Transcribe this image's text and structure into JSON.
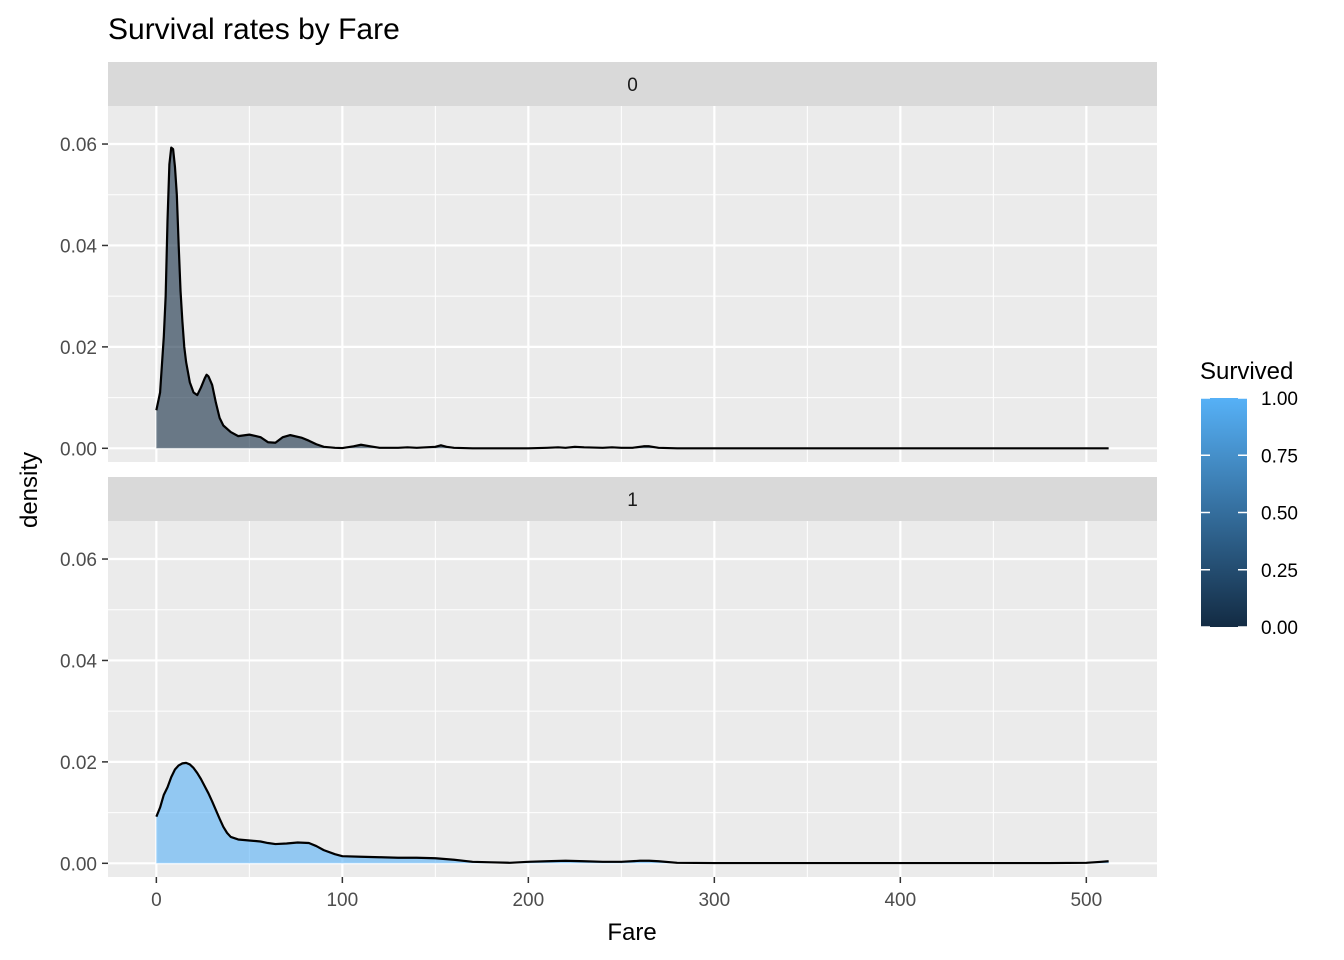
{
  "chart_data": {
    "type": "area",
    "title": "Survival rates by Fare",
    "xlabel": "Fare",
    "ylabel": "density",
    "xlim": [
      -26,
      538
    ],
    "ylim": [
      -0.0027,
      0.0675
    ],
    "x_ticks": [
      0,
      100,
      200,
      300,
      400,
      500
    ],
    "x_tick_labels": [
      "0",
      "100",
      "200",
      "300",
      "400",
      "500"
    ],
    "y_ticks": [
      0,
      0.02,
      0.04,
      0.06
    ],
    "y_tick_labels": [
      "0.00",
      "0.02",
      "0.04",
      "0.06"
    ],
    "grid": true,
    "legend": {
      "title": "Survived",
      "position": "right",
      "type": "colorbar",
      "low_color": "#132b43",
      "high_color": "#56b1f7",
      "limits": [
        0,
        1
      ],
      "ticks": [
        0,
        0.25,
        0.5,
        0.75,
        1
      ],
      "tick_labels": [
        "0.00",
        "0.25",
        "0.50",
        "0.75",
        "1.00"
      ]
    },
    "facets": [
      {
        "label": "0",
        "fill_value": 0,
        "fill_color": "#132b43",
        "points": [
          [
            0,
            0.0075
          ],
          [
            2,
            0.011
          ],
          [
            4,
            0.022
          ],
          [
            5,
            0.03
          ],
          [
            6,
            0.045
          ],
          [
            7,
            0.056
          ],
          [
            8,
            0.0593
          ],
          [
            9,
            0.059
          ],
          [
            10,
            0.0555
          ],
          [
            11,
            0.05
          ],
          [
            12,
            0.04
          ],
          [
            13,
            0.031
          ],
          [
            14,
            0.025
          ],
          [
            15,
            0.02
          ],
          [
            16,
            0.017
          ],
          [
            18,
            0.013
          ],
          [
            20,
            0.011
          ],
          [
            22,
            0.0105
          ],
          [
            24,
            0.012
          ],
          [
            26,
            0.0138
          ],
          [
            27,
            0.0145
          ],
          [
            28,
            0.0142
          ],
          [
            30,
            0.0125
          ],
          [
            32,
            0.009
          ],
          [
            34,
            0.006
          ],
          [
            36,
            0.0045
          ],
          [
            40,
            0.0032
          ],
          [
            44,
            0.0024
          ],
          [
            50,
            0.0027
          ],
          [
            56,
            0.0022
          ],
          [
            60,
            0.0012
          ],
          [
            64,
            0.0011
          ],
          [
            68,
            0.0022
          ],
          [
            72,
            0.0026
          ],
          [
            78,
            0.0021
          ],
          [
            82,
            0.0015
          ],
          [
            86,
            0.0008
          ],
          [
            90,
            0.0003
          ],
          [
            96,
            0.0001
          ],
          [
            100,
            5e-05
          ],
          [
            106,
            0.0004
          ],
          [
            110,
            0.0007
          ],
          [
            115,
            0.0004
          ],
          [
            120,
            0.0001
          ],
          [
            130,
            0.0001
          ],
          [
            135,
            0.0002
          ],
          [
            140,
            0.0001
          ],
          [
            150,
            0.0003
          ],
          [
            153,
            0.0006
          ],
          [
            156,
            0.0003
          ],
          [
            160,
            0.0001
          ],
          [
            170,
            0
          ],
          [
            200,
            0
          ],
          [
            210,
            0.0001
          ],
          [
            216,
            0.0002
          ],
          [
            220,
            0.0001
          ],
          [
            225,
            0.0003
          ],
          [
            230,
            0.0002
          ],
          [
            240,
            0.0001
          ],
          [
            245,
            0.0002
          ],
          [
            250,
            0.0001
          ],
          [
            256,
            0.0001
          ],
          [
            262,
            0.0004
          ],
          [
            265,
            0.0004
          ],
          [
            270,
            0.0001
          ],
          [
            280,
            0
          ],
          [
            300,
            0
          ],
          [
            400,
            0
          ],
          [
            500,
            0
          ],
          [
            512,
            0
          ]
        ]
      },
      {
        "label": "1",
        "fill_value": 1,
        "fill_color": "#56b1f7",
        "points": [
          [
            0,
            0.0092
          ],
          [
            2,
            0.011
          ],
          [
            4,
            0.0135
          ],
          [
            6,
            0.015
          ],
          [
            8,
            0.017
          ],
          [
            10,
            0.0185
          ],
          [
            12,
            0.0193
          ],
          [
            14,
            0.0197
          ],
          [
            16,
            0.0198
          ],
          [
            18,
            0.0195
          ],
          [
            20,
            0.0188
          ],
          [
            22,
            0.0178
          ],
          [
            24,
            0.0166
          ],
          [
            26,
            0.0152
          ],
          [
            28,
            0.0138
          ],
          [
            30,
            0.0122
          ],
          [
            32,
            0.0105
          ],
          [
            34,
            0.0088
          ],
          [
            36,
            0.0072
          ],
          [
            38,
            0.006
          ],
          [
            40,
            0.0052
          ],
          [
            44,
            0.0047
          ],
          [
            50,
            0.0045
          ],
          [
            56,
            0.0043
          ],
          [
            60,
            0.004
          ],
          [
            64,
            0.0038
          ],
          [
            70,
            0.0039
          ],
          [
            76,
            0.0041
          ],
          [
            82,
            0.004
          ],
          [
            86,
            0.0034
          ],
          [
            90,
            0.0026
          ],
          [
            96,
            0.0018
          ],
          [
            100,
            0.0014
          ],
          [
            110,
            0.0013
          ],
          [
            120,
            0.0012
          ],
          [
            130,
            0.0011
          ],
          [
            140,
            0.0011
          ],
          [
            150,
            0.001
          ],
          [
            160,
            0.0007
          ],
          [
            170,
            0.0003
          ],
          [
            180,
            0.0002
          ],
          [
            190,
            0.0001
          ],
          [
            200,
            0.0003
          ],
          [
            210,
            0.0004
          ],
          [
            220,
            0.0005
          ],
          [
            230,
            0.0004
          ],
          [
            240,
            0.0003
          ],
          [
            250,
            0.0003
          ],
          [
            260,
            0.0005
          ],
          [
            265,
            0.0005
          ],
          [
            270,
            0.0004
          ],
          [
            280,
            0.0001
          ],
          [
            300,
            5e-05
          ],
          [
            400,
            5e-05
          ],
          [
            480,
            5e-05
          ],
          [
            500,
            0.0001
          ],
          [
            508,
            0.0003
          ],
          [
            512,
            0.0004
          ]
        ]
      }
    ]
  }
}
